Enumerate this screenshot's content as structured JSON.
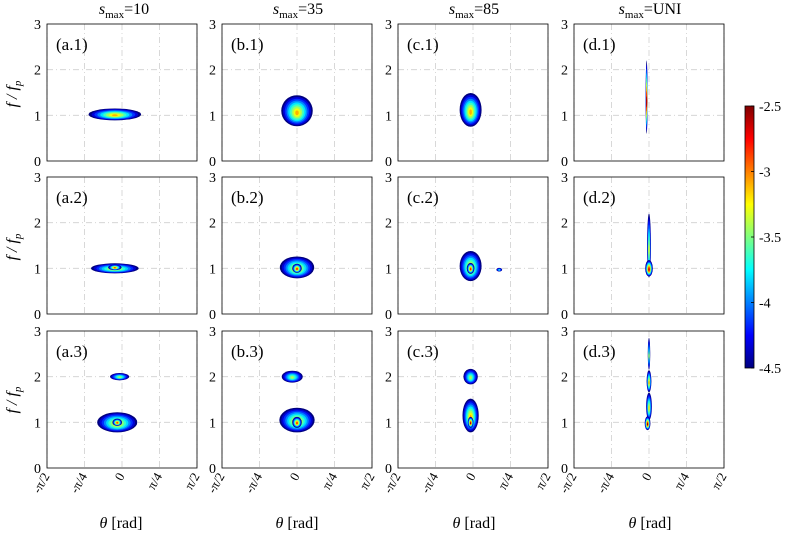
{
  "colors": {
    "colormap": [
      "#00007f",
      "#0000ff",
      "#007fff",
      "#00ffff",
      "#7fff7f",
      "#ffff00",
      "#ff7f00",
      "#ff0000",
      "#7f0000"
    ],
    "panel_border": "#000000",
    "grid": "#cfcfcf"
  },
  "chart_data": {
    "type": "heatmap",
    "description": "Directional spectrum density (log10) panels",
    "column_titles": [
      {
        "prefix": "s",
        "sub": "max",
        "suffix": "=10"
      },
      {
        "prefix": "s",
        "sub": "max",
        "suffix": "=35"
      },
      {
        "prefix": "s",
        "sub": "max",
        "suffix": "=85"
      },
      {
        "prefix": "s",
        "sub": "max",
        "suffix": "=UNI"
      }
    ],
    "panel_labels": [
      [
        "(a.1)",
        "(b.1)",
        "(c.1)",
        "(d.1)"
      ],
      [
        "(a.2)",
        "(b.2)",
        "(c.2)",
        "(d.2)"
      ],
      [
        "(a.3)",
        "(b.3)",
        "(c.3)",
        "(d.3)"
      ]
    ],
    "ylabel": {
      "main": "f / f",
      "sub": "p"
    },
    "xlabel": {
      "symbol": "θ",
      "unit": " [rad]"
    },
    "y_ticks": [
      "0",
      "1",
      "2",
      "3"
    ],
    "ylim": [
      0,
      3
    ],
    "x_ticks": [
      "-π/2",
      "-π/4",
      "0",
      "π/4",
      "π/2"
    ],
    "x_tick_values": [
      -1.5708,
      -0.7854,
      0,
      0.7854,
      1.5708
    ],
    "xlim": [
      -1.5708,
      1.5708
    ],
    "colorbar": {
      "ticks": [
        "-2.5",
        "-3",
        "-3.5",
        "-4",
        "-4.5"
      ],
      "tick_values": [
        -2.5,
        -3,
        -3.5,
        -4,
        -4.5
      ],
      "range": [
        -4.5,
        -2.5
      ]
    },
    "blobs": [
      [
        [
          {
            "x": -0.15,
            "y": 1.02,
            "rx": 0.55,
            "ry": 0.13,
            "peak": 0.7
          }
        ],
        [
          {
            "x": 0.0,
            "y": 1.1,
            "rx": 0.33,
            "ry": 0.34,
            "peak": 0.7
          }
        ],
        [
          {
            "x": -0.05,
            "y": 1.12,
            "rx": 0.23,
            "ry": 0.37,
            "peak": 0.7
          }
        ],
        [
          {
            "x": -0.05,
            "y": 1.4,
            "rx": 0.02,
            "ry": 0.8,
            "peak": 0.95
          }
        ]
      ],
      [
        [
          {
            "x": -0.15,
            "y": 1.0,
            "rx": 0.5,
            "ry": 0.11,
            "peak": 0.65
          },
          {
            "x": -0.15,
            "y": 1.02,
            "rx": 0.14,
            "ry": 0.06,
            "peak": 0.82
          }
        ],
        [
          {
            "x": 0.0,
            "y": 1.02,
            "rx": 0.36,
            "ry": 0.24,
            "peak": 0.68
          },
          {
            "x": 0.0,
            "y": 1.0,
            "rx": 0.1,
            "ry": 0.1,
            "peak": 0.88
          }
        ],
        [
          {
            "x": -0.05,
            "y": 1.05,
            "rx": 0.23,
            "ry": 0.33,
            "peak": 0.7
          },
          {
            "x": -0.05,
            "y": 1.0,
            "rx": 0.08,
            "ry": 0.12,
            "peak": 0.88
          },
          {
            "x": 0.55,
            "y": 0.97,
            "rx": 0.06,
            "ry": 0.04,
            "peak": 0.4
          }
        ],
        [
          {
            "x": 0.0,
            "y": 1.5,
            "rx": 0.04,
            "ry": 0.7,
            "peak": 0.62
          },
          {
            "x": 0.0,
            "y": 1.0,
            "rx": 0.08,
            "ry": 0.18,
            "peak": 0.95
          }
        ]
      ],
      [
        [
          {
            "x": -0.05,
            "y": 2.0,
            "rx": 0.2,
            "ry": 0.08,
            "peak": 0.55
          },
          {
            "x": -0.1,
            "y": 1.0,
            "rx": 0.42,
            "ry": 0.22,
            "peak": 0.68
          },
          {
            "x": -0.1,
            "y": 1.0,
            "rx": 0.1,
            "ry": 0.08,
            "peak": 0.86
          }
        ],
        [
          {
            "x": -0.1,
            "y": 2.0,
            "rx": 0.22,
            "ry": 0.13,
            "peak": 0.55
          },
          {
            "x": 0.0,
            "y": 1.05,
            "rx": 0.37,
            "ry": 0.27,
            "peak": 0.68
          },
          {
            "x": 0.0,
            "y": 1.0,
            "rx": 0.1,
            "ry": 0.12,
            "peak": 0.86
          }
        ],
        [
          {
            "x": -0.05,
            "y": 2.0,
            "rx": 0.15,
            "ry": 0.17,
            "peak": 0.55
          },
          {
            "x": -0.05,
            "y": 1.15,
            "rx": 0.17,
            "ry": 0.37,
            "peak": 0.72
          },
          {
            "x": -0.05,
            "y": 1.0,
            "rx": 0.06,
            "ry": 0.12,
            "peak": 0.97
          }
        ],
        [
          {
            "x": 0.0,
            "y": 1.9,
            "rx": 0.05,
            "ry": 0.24,
            "peak": 0.72
          },
          {
            "x": 0.0,
            "y": 1.35,
            "rx": 0.06,
            "ry": 0.3,
            "peak": 0.65
          },
          {
            "x": -0.03,
            "y": 0.98,
            "rx": 0.06,
            "ry": 0.15,
            "peak": 0.98
          },
          {
            "x": 0.0,
            "y": 2.5,
            "rx": 0.025,
            "ry": 0.35,
            "peak": 0.55
          }
        ]
      ]
    ]
  }
}
